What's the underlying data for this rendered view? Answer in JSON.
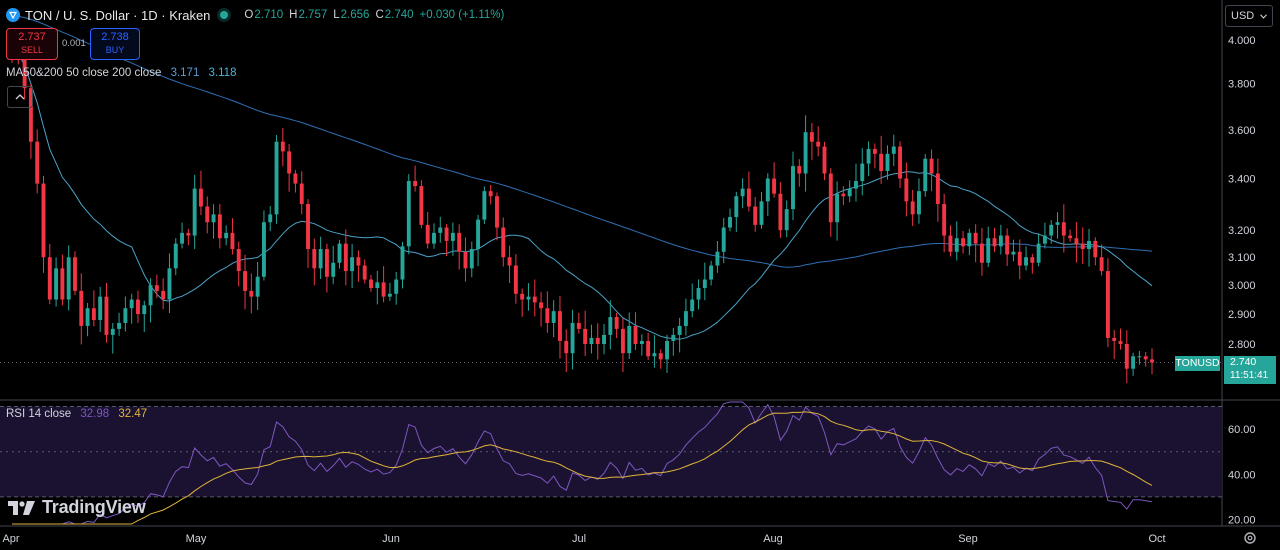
{
  "header": {
    "symbol": "TON / U. S. Dollar · 1D · Kraken",
    "open_label": "O",
    "open": "2.710",
    "high_label": "H",
    "high": "2.757",
    "low_label": "L",
    "low": "2.656",
    "close_label": "C",
    "close": "2.740",
    "change": "+0.030 (+1.11%)"
  },
  "trade": {
    "sell_price": "2.737",
    "sell_label": "SELL",
    "spread": "0.001",
    "buy_price": "2.738",
    "buy_label": "BUY"
  },
  "ma_legend": {
    "label": "MA50&200 50 close 200 close",
    "ma50_value": "3.171",
    "ma200_value": "3.118"
  },
  "rsi_legend": {
    "label": "RSI 14 close",
    "rsi_value": "32.98",
    "rsi_ma_value": "32.47"
  },
  "currency_selector": {
    "value": "USD"
  },
  "brand": {
    "name": "TradingView"
  },
  "price_tag": {
    "symbol": "TONUSD",
    "price": "2.740",
    "countdown": "11:51:41"
  },
  "colors": {
    "up": "#26a69a",
    "down": "#f23645",
    "ma50": "#2f6fb4",
    "ma200": "#4aa3c8",
    "rsi": "#7e57c2",
    "rsi_ma": "#e0b43c",
    "rsi_band": "#1a1230"
  },
  "chart_data": [
    {
      "type": "candlestick",
      "title": "TON / U. S. Dollar · 1D · Kraken",
      "x_tick_labels": [
        "Apr",
        "May",
        "Jun",
        "Jul",
        "Aug",
        "Sep",
        "Oct"
      ],
      "y_tick_labels": [
        "4.000",
        "3.800",
        "3.600",
        "3.400",
        "3.200",
        "3.100",
        "3.000",
        "2.900",
        "2.800"
      ],
      "y_scale": "log",
      "ylim": [
        2.62,
        4.05
      ],
      "last_price": 2.74,
      "series": [
        {
          "name": "MA 50",
          "value": 3.171
        },
        {
          "name": "MA 200",
          "value": 3.118
        }
      ],
      "closes": [
        3.95,
        3.92,
        3.78,
        3.55,
        3.38,
        3.1,
        2.95,
        3.06,
        2.95,
        3.1,
        2.98,
        2.86,
        2.92,
        2.88,
        2.96,
        2.83,
        2.85,
        2.87,
        2.92,
        2.95,
        2.9,
        2.93,
        3.0,
        2.98,
        2.95,
        3.06,
        3.15,
        3.19,
        3.18,
        3.36,
        3.29,
        3.23,
        3.26,
        3.17,
        3.19,
        3.13,
        3.05,
        2.98,
        2.96,
        3.03,
        3.23,
        3.26,
        3.55,
        3.51,
        3.42,
        3.38,
        3.3,
        3.13,
        3.06,
        3.13,
        3.03,
        3.08,
        3.15,
        3.05,
        3.1,
        3.07,
        3.02,
        2.99,
        3.01,
        2.96,
        2.97,
        3.02,
        3.14,
        3.39,
        3.37,
        3.22,
        3.15,
        3.19,
        3.21,
        3.16,
        3.19,
        3.12,
        3.06,
        3.13,
        3.24,
        3.35,
        3.33,
        3.21,
        3.1,
        3.07,
        2.97,
        2.95,
        2.96,
        2.94,
        2.92,
        2.87,
        2.91,
        2.81,
        2.77,
        2.87,
        2.85,
        2.8,
        2.82,
        2.8,
        2.83,
        2.89,
        2.85,
        2.77,
        2.86,
        2.8,
        2.81,
        2.76,
        2.77,
        2.75,
        2.81,
        2.83,
        2.86,
        2.91,
        2.95,
        2.99,
        3.02,
        3.07,
        3.12,
        3.21,
        3.25,
        3.33,
        3.36,
        3.29,
        3.22,
        3.31,
        3.4,
        3.34,
        3.2,
        3.28,
        3.45,
        3.42,
        3.59,
        3.55,
        3.53,
        3.42,
        3.23,
        3.34,
        3.33,
        3.36,
        3.39,
        3.46,
        3.52,
        3.5,
        3.43,
        3.5,
        3.53,
        3.4,
        3.31,
        3.26,
        3.35,
        3.48,
        3.42,
        3.3,
        3.18,
        3.12,
        3.17,
        3.14,
        3.19,
        3.15,
        3.08,
        3.17,
        3.14,
        3.18,
        3.11,
        3.12,
        3.07,
        3.1,
        3.08,
        3.15,
        3.18,
        3.22,
        3.23,
        3.18,
        3.17,
        3.15,
        3.13,
        3.16,
        3.1,
        3.05,
        2.82,
        2.81,
        2.8,
        2.72,
        2.76,
        2.76,
        2.75,
        2.74
      ]
    },
    {
      "type": "line",
      "title": "RSI 14 close",
      "y_tick_labels": [
        "60.00",
        "40.00",
        "20.00"
      ],
      "ylim": [
        18,
        72
      ],
      "bands": [
        30,
        50,
        70
      ],
      "series": [
        {
          "name": "RSI",
          "value": 32.98
        },
        {
          "name": "RSI MA",
          "value": 32.47
        }
      ]
    }
  ]
}
